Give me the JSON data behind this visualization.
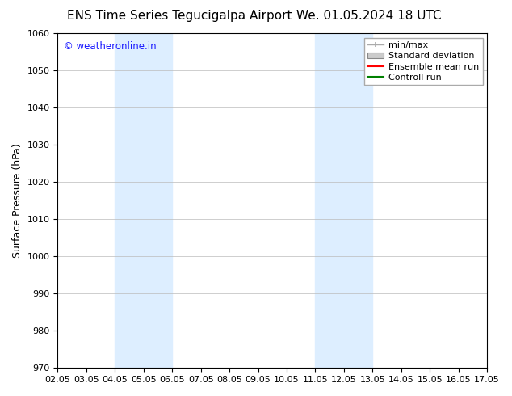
{
  "title_left": "ENS Time Series Tegucigalpa Airport",
  "title_right": "We. 01.05.2024 18 UTC",
  "ylabel": "Surface Pressure (hPa)",
  "ylim": [
    970,
    1060
  ],
  "yticks": [
    970,
    980,
    990,
    1000,
    1010,
    1020,
    1030,
    1040,
    1050,
    1060
  ],
  "xlim": [
    0,
    15
  ],
  "xtick_labels": [
    "02.05",
    "03.05",
    "04.05",
    "05.05",
    "06.05",
    "07.05",
    "08.05",
    "09.05",
    "10.05",
    "11.05",
    "12.05",
    "13.05",
    "14.05",
    "15.05",
    "16.05",
    "17.05"
  ],
  "xtick_positions": [
    0,
    1,
    2,
    3,
    4,
    5,
    6,
    7,
    8,
    9,
    10,
    11,
    12,
    13,
    14,
    15
  ],
  "shaded_band1_x0": 2,
  "shaded_band1_x1": 4,
  "shaded_band2_x0": 9,
  "shaded_band2_x1": 11,
  "band_color": "#ddeeff",
  "watermark": "© weatheronline.in",
  "watermark_color": "#1a1aff",
  "bg_color": "#ffffff",
  "plot_bg_color": "#ffffff",
  "grid_color": "#bbbbbb",
  "title_fontsize": 11,
  "axis_fontsize": 9,
  "tick_fontsize": 8,
  "legend_fontsize": 8
}
